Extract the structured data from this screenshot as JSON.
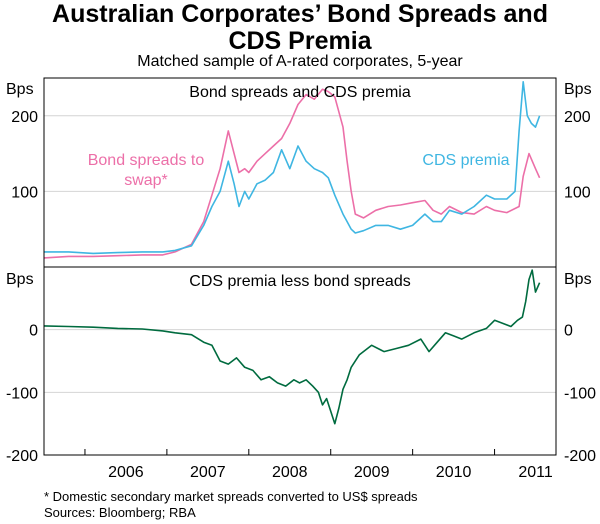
{
  "title_line1": "Australian Corporates’ Bond Spreads and",
  "title_line2": "CDS Premia",
  "subtitle": "Matched sample of A-rated corporates, 5-year",
  "footnote": "*     Domestic secondary market spreads converted to US$ spreads",
  "sources": "Sources: Bloomberg; RBA",
  "colors": {
    "bond": "#ec6fa8",
    "cds": "#3fb6e2",
    "diff": "#006b3f"
  },
  "chart_data": [
    {
      "type": "line",
      "panel_title": "Bond spreads and CDS premia",
      "ylabel_left": "Bps",
      "ylabel_right": "Bps",
      "ylim": [
        0,
        250
      ],
      "yticks": [
        100,
        200
      ],
      "xlim": [
        2005.5,
        2011.75
      ],
      "annotations": {
        "bond": [
          "Bond spreads to",
          "swap*"
        ],
        "cds": [
          "CDS premia"
        ]
      },
      "series": [
        {
          "key": "bond",
          "x": [
            2005.5,
            2005.8,
            2006.1,
            2006.4,
            2006.7,
            2006.95,
            2007.1,
            2007.3,
            2007.45,
            2007.55,
            2007.65,
            2007.75,
            2007.82,
            2007.88,
            2007.95,
            2008.0,
            2008.1,
            2008.2,
            2008.3,
            2008.4,
            2008.5,
            2008.6,
            2008.7,
            2008.8,
            2008.9,
            2008.97,
            2009.05,
            2009.15,
            2009.2,
            2009.25,
            2009.3,
            2009.4,
            2009.55,
            2009.7,
            2009.85,
            2010.0,
            2010.15,
            2010.25,
            2010.35,
            2010.45,
            2010.6,
            2010.75,
            2010.9,
            2011.0,
            2011.15,
            2011.3,
            2011.35,
            2011.42,
            2011.5,
            2011.55
          ],
          "y": [
            12,
            14,
            14,
            15,
            16,
            16,
            20,
            30,
            60,
            95,
            130,
            180,
            150,
            125,
            130,
            125,
            140,
            150,
            160,
            170,
            190,
            215,
            228,
            222,
            235,
            232,
            225,
            185,
            140,
            100,
            70,
            65,
            75,
            80,
            82,
            85,
            88,
            75,
            70,
            80,
            72,
            70,
            80,
            75,
            72,
            80,
            120,
            150,
            130,
            118
          ]
        },
        {
          "key": "cds",
          "x": [
            2005.5,
            2005.8,
            2006.1,
            2006.4,
            2006.7,
            2006.95,
            2007.1,
            2007.3,
            2007.45,
            2007.55,
            2007.65,
            2007.75,
            2007.82,
            2007.88,
            2007.95,
            2008.0,
            2008.1,
            2008.2,
            2008.3,
            2008.4,
            2008.5,
            2008.6,
            2008.7,
            2008.8,
            2008.9,
            2008.97,
            2009.05,
            2009.15,
            2009.2,
            2009.25,
            2009.3,
            2009.4,
            2009.55,
            2009.7,
            2009.85,
            2010.0,
            2010.15,
            2010.25,
            2010.35,
            2010.45,
            2010.6,
            2010.75,
            2010.9,
            2011.0,
            2011.15,
            2011.25,
            2011.3,
            2011.35,
            2011.4,
            2011.45,
            2011.5,
            2011.55
          ],
          "y": [
            20,
            20,
            18,
            19,
            20,
            20,
            22,
            28,
            55,
            80,
            100,
            140,
            110,
            80,
            100,
            90,
            110,
            115,
            125,
            155,
            130,
            160,
            140,
            130,
            125,
            118,
            95,
            70,
            60,
            50,
            45,
            48,
            55,
            55,
            50,
            55,
            70,
            60,
            60,
            75,
            70,
            80,
            95,
            90,
            90,
            100,
            180,
            245,
            200,
            190,
            185,
            200
          ]
        }
      ]
    },
    {
      "type": "line",
      "panel_title": "CDS premia less bond spreads",
      "ylabel_left": "Bps",
      "ylabel_right": "Bps",
      "ylim": [
        -200,
        100
      ],
      "yticks": [
        0,
        -100,
        -200
      ],
      "xlim": [
        2005.5,
        2011.75
      ],
      "xticks": [
        "2006",
        "2007",
        "2008",
        "2009",
        "2010",
        "2011"
      ],
      "series": [
        {
          "key": "diff",
          "x": [
            2005.5,
            2005.8,
            2006.1,
            2006.4,
            2006.7,
            2006.95,
            2007.1,
            2007.3,
            2007.45,
            2007.55,
            2007.65,
            2007.75,
            2007.85,
            2007.95,
            2008.05,
            2008.15,
            2008.25,
            2008.35,
            2008.45,
            2008.55,
            2008.62,
            2008.7,
            2008.78,
            2008.85,
            2008.9,
            2008.95,
            2009.0,
            2009.05,
            2009.1,
            2009.15,
            2009.2,
            2009.25,
            2009.35,
            2009.5,
            2009.65,
            2009.8,
            2009.95,
            2010.1,
            2010.2,
            2010.3,
            2010.4,
            2010.5,
            2010.6,
            2010.75,
            2010.9,
            2011.0,
            2011.1,
            2011.2,
            2011.28,
            2011.34,
            2011.38,
            2011.42,
            2011.46,
            2011.5,
            2011.55
          ],
          "y": [
            6,
            5,
            4,
            2,
            1,
            -2,
            -5,
            -8,
            -20,
            -25,
            -50,
            -55,
            -45,
            -60,
            -65,
            -80,
            -75,
            -85,
            -90,
            -80,
            -85,
            -80,
            -90,
            -100,
            -120,
            -110,
            -130,
            -150,
            -125,
            -95,
            -80,
            -60,
            -40,
            -25,
            -35,
            -30,
            -25,
            -15,
            -35,
            -20,
            -5,
            -10,
            -15,
            -5,
            2,
            15,
            10,
            5,
            15,
            20,
            45,
            80,
            95,
            60,
            75
          ]
        }
      ]
    }
  ]
}
